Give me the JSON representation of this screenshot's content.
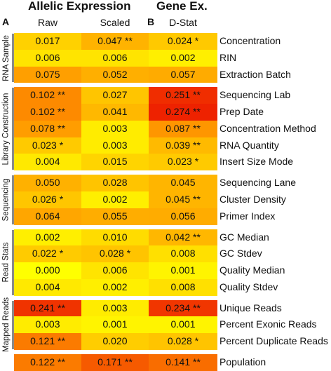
{
  "titles": {
    "allelic": "Allelic Expression",
    "gene": "Gene Ex."
  },
  "panels": {
    "a": "A",
    "b": "B"
  },
  "columns": [
    "Raw",
    "Scaled",
    "D-Stat"
  ],
  "chart_data": {
    "type": "heatmap",
    "color_scale": {
      "low": "#ffff00",
      "mid": "#ff9a00",
      "high": "#ee2200"
    },
    "columns": [
      "Raw",
      "Scaled",
      "D-Stat"
    ],
    "groups": [
      {
        "name": "RNA Sample",
        "rows": [
          {
            "label": "Concentration",
            "cells": [
              {
                "v": "0.017",
                "sig": ""
              },
              {
                "v": "0.047",
                "sig": "**"
              },
              {
                "v": "0.024",
                "sig": "*"
              }
            ]
          },
          {
            "label": "RIN",
            "cells": [
              {
                "v": "0.006",
                "sig": ""
              },
              {
                "v": "0.006",
                "sig": ""
              },
              {
                "v": "0.002",
                "sig": ""
              }
            ]
          },
          {
            "label": "Extraction Batch",
            "cells": [
              {
                "v": "0.075",
                "sig": ""
              },
              {
                "v": "0.052",
                "sig": ""
              },
              {
                "v": "0.057",
                "sig": ""
              }
            ]
          }
        ]
      },
      {
        "name": "Library Construction",
        "rows": [
          {
            "label": "Sequencing Lab",
            "cells": [
              {
                "v": "0.102",
                "sig": "**"
              },
              {
                "v": "0.027",
                "sig": ""
              },
              {
                "v": "0.251",
                "sig": "**"
              }
            ]
          },
          {
            "label": "Prep Date",
            "cells": [
              {
                "v": "0.102",
                "sig": "**"
              },
              {
                "v": "0.041",
                "sig": ""
              },
              {
                "v": "0.274",
                "sig": "**"
              }
            ]
          },
          {
            "label": "Concentration Method",
            "cells": [
              {
                "v": "0.078",
                "sig": "**"
              },
              {
                "v": "0.003",
                "sig": ""
              },
              {
                "v": "0.087",
                "sig": "**"
              }
            ]
          },
          {
            "label": "RNA Quantity",
            "cells": [
              {
                "v": "0.023",
                "sig": "*"
              },
              {
                "v": "0.003",
                "sig": ""
              },
              {
                "v": "0.039",
                "sig": "**"
              }
            ]
          },
          {
            "label": "Insert Size Mode",
            "cells": [
              {
                "v": "0.004",
                "sig": ""
              },
              {
                "v": "0.015",
                "sig": ""
              },
              {
                "v": "0.023",
                "sig": "*"
              }
            ]
          }
        ]
      },
      {
        "name": "Sequencing",
        "rows": [
          {
            "label": "Sequencing Lane",
            "cells": [
              {
                "v": "0.050",
                "sig": ""
              },
              {
                "v": "0.028",
                "sig": ""
              },
              {
                "v": "0.045",
                "sig": ""
              }
            ]
          },
          {
            "label": "Cluster Density",
            "cells": [
              {
                "v": "0.026",
                "sig": "*"
              },
              {
                "v": "0.002",
                "sig": ""
              },
              {
                "v": "0.045",
                "sig": "**"
              }
            ]
          },
          {
            "label": "Primer Index",
            "cells": [
              {
                "v": "0.064",
                "sig": ""
              },
              {
                "v": "0.055",
                "sig": ""
              },
              {
                "v": "0.056",
                "sig": ""
              }
            ]
          }
        ]
      },
      {
        "name": "Read Stats",
        "rows": [
          {
            "label": "GC Median",
            "cells": [
              {
                "v": "0.002",
                "sig": ""
              },
              {
                "v": "0.010",
                "sig": ""
              },
              {
                "v": "0.042",
                "sig": "**"
              }
            ]
          },
          {
            "label": "GC Stdev",
            "cells": [
              {
                "v": "0.022",
                "sig": "*"
              },
              {
                "v": "0.028",
                "sig": "*"
              },
              {
                "v": "0.008",
                "sig": ""
              }
            ]
          },
          {
            "label": "Quality Median",
            "cells": [
              {
                "v": "0.000",
                "sig": ""
              },
              {
                "v": "0.006",
                "sig": ""
              },
              {
                "v": "0.001",
                "sig": ""
              }
            ]
          },
          {
            "label": "Quality Stdev",
            "cells": [
              {
                "v": "0.004",
                "sig": ""
              },
              {
                "v": "0.002",
                "sig": ""
              },
              {
                "v": "0.008",
                "sig": ""
              }
            ]
          }
        ]
      },
      {
        "name": "Mapped Reads",
        "rows": [
          {
            "label": "Unique Reads",
            "cells": [
              {
                "v": "0.241",
                "sig": "**"
              },
              {
                "v": "0.003",
                "sig": ""
              },
              {
                "v": "0.234",
                "sig": "**"
              }
            ]
          },
          {
            "label": "Percent Exonic Reads",
            "cells": [
              {
                "v": "0.003",
                "sig": ""
              },
              {
                "v": "0.001",
                "sig": ""
              },
              {
                "v": "0.001",
                "sig": ""
              }
            ]
          },
          {
            "label": "Percent Duplicate Reads",
            "cells": [
              {
                "v": "0.121",
                "sig": "**"
              },
              {
                "v": "0.020",
                "sig": ""
              },
              {
                "v": "0.028",
                "sig": "*"
              }
            ]
          }
        ]
      },
      {
        "name": "",
        "rows": [
          {
            "label": "Population",
            "cells": [
              {
                "v": "0.122",
                "sig": "**"
              },
              {
                "v": "0.171",
                "sig": "**"
              },
              {
                "v": "0.141",
                "sig": "**"
              }
            ]
          }
        ]
      }
    ]
  }
}
